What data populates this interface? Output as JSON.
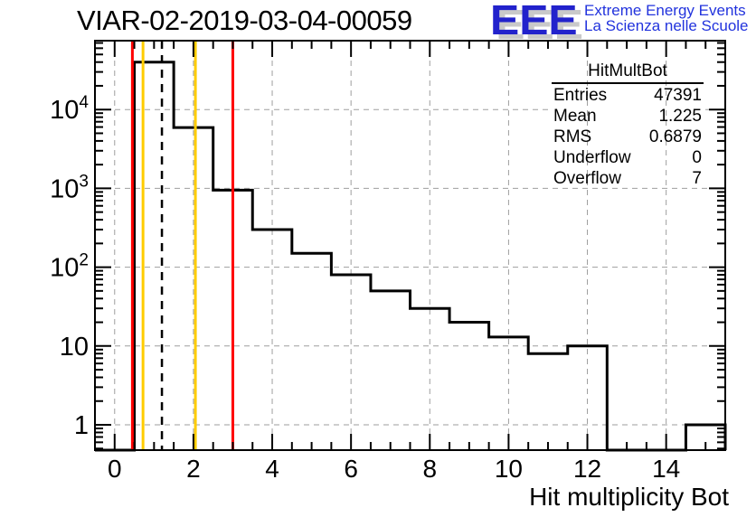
{
  "header": {
    "title": "VIAR-02-2019-03-04-00059"
  },
  "logo": {
    "acronym": "EEE",
    "line1": "Extreme Energy Events",
    "line2": "La Scienza nelle Scuole",
    "color": "#2233dd"
  },
  "stats": {
    "title": "HitMultBot",
    "rows": [
      {
        "label": "Entries",
        "value": "47391"
      },
      {
        "label": "Mean",
        "value": "1.225"
      },
      {
        "label": "RMS",
        "value": "0.6879"
      },
      {
        "label": "Underflow",
        "value": "0"
      },
      {
        "label": "Overflow",
        "value": "7"
      }
    ]
  },
  "chart_data": {
    "type": "bar",
    "style": "step-histogram",
    "title": "VIAR-02-2019-03-04-00059",
    "xlabel": "Hit multiplicity Bot",
    "ylabel": "",
    "yscale": "log",
    "grid": true,
    "xlim": [
      -0.5,
      15.5
    ],
    "ylim": [
      0.5,
      74000
    ],
    "bin_centers": [
      0,
      1,
      2,
      3,
      4,
      5,
      6,
      7,
      8,
      9,
      10,
      11,
      12,
      13,
      14,
      15
    ],
    "values": [
      0,
      39900,
      5900,
      950,
      300,
      150,
      80,
      50,
      30,
      20,
      13,
      8,
      10,
      0,
      0,
      1
    ],
    "x_major_ticks": [
      0,
      2,
      4,
      6,
      8,
      10,
      12,
      14
    ],
    "y_tick_labels": [
      {
        "t": "1"
      },
      {
        "t": "10"
      },
      {
        "t": "10",
        "e": "2"
      },
      {
        "t": "10",
        "e": "3"
      },
      {
        "t": "10",
        "e": "4"
      }
    ],
    "grid_color": "#9e9e9e",
    "hist_color": "#000000",
    "marker_lines": [
      {
        "x": 0.45,
        "color": "#ff0000",
        "style": "solid"
      },
      {
        "x": 0.72,
        "color": "#ffcc00",
        "style": "solid"
      },
      {
        "x": 1.2,
        "color": "#000000",
        "style": "dashed"
      },
      {
        "x": 2.05,
        "color": "#ffcc00",
        "style": "solid"
      },
      {
        "x": 3.0,
        "color": "#ff0000",
        "style": "solid"
      }
    ]
  }
}
